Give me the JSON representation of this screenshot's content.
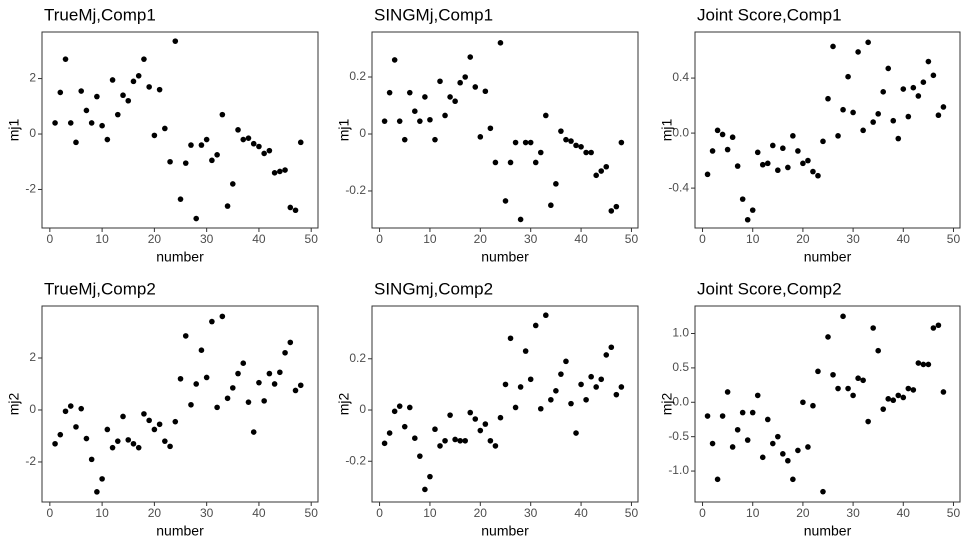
{
  "chart_data": [
    {
      "type": "scatter",
      "title": "TrueMj,Comp1",
      "x_label": "number",
      "y_label": "mj1",
      "color": "#000000",
      "grid": false,
      "x": [
        1,
        2,
        3,
        4,
        5,
        6,
        7,
        8,
        9,
        10,
        11,
        12,
        13,
        14,
        15,
        16,
        17,
        18,
        19,
        20,
        21,
        22,
        23,
        24,
        25,
        26,
        27,
        28,
        29,
        30,
        31,
        32,
        33,
        34,
        35,
        36,
        37,
        38,
        39,
        40,
        41,
        42,
        43,
        44,
        45,
        46,
        47,
        48
      ],
      "values": [
        0.4,
        1.5,
        2.7,
        0.4,
        -0.3,
        1.55,
        0.85,
        0.4,
        1.35,
        0.3,
        -0.2,
        1.95,
        0.7,
        1.4,
        1.2,
        1.9,
        2.1,
        2.7,
        1.7,
        -0.05,
        1.6,
        0.2,
        -1.0,
        3.35,
        -2.35,
        -1.05,
        -0.4,
        -3.05,
        -0.4,
        -0.2,
        -0.95,
        -0.75,
        0.7,
        -2.6,
        -1.8,
        0.15,
        -0.2,
        -0.15,
        -0.35,
        -0.45,
        -0.7,
        -0.6,
        -1.4,
        -1.35,
        -1.3,
        -2.65,
        -2.75,
        -0.3
      ],
      "xlim": [
        -1.5,
        51.3
      ],
      "xticks": [
        0,
        10,
        20,
        30,
        40,
        50
      ],
      "ylim": [
        -3.39,
        3.68
      ],
      "yticks": [
        -2,
        0,
        2
      ]
    },
    {
      "type": "scatter",
      "title": "SINGMj,Comp1",
      "x_label": "number",
      "y_label": "mj1",
      "color": "#000000",
      "grid": false,
      "x": [
        1,
        2,
        3,
        4,
        5,
        6,
        7,
        8,
        9,
        10,
        11,
        12,
        13,
        14,
        15,
        16,
        17,
        18,
        19,
        20,
        21,
        22,
        23,
        24,
        25,
        26,
        27,
        28,
        29,
        30,
        31,
        32,
        33,
        34,
        35,
        36,
        37,
        38,
        39,
        40,
        41,
        42,
        43,
        44,
        45,
        46,
        47,
        48
      ],
      "values": [
        0.045,
        0.145,
        0.26,
        0.045,
        -0.02,
        0.145,
        0.08,
        0.045,
        0.13,
        0.05,
        -0.02,
        0.185,
        0.065,
        0.13,
        0.115,
        0.18,
        0.2,
        0.27,
        0.165,
        -0.01,
        0.15,
        0.02,
        -0.1,
        0.32,
        -0.235,
        -0.1,
        -0.03,
        -0.3,
        -0.03,
        -0.03,
        -0.1,
        -0.065,
        0.065,
        -0.25,
        -0.175,
        0.01,
        -0.02,
        -0.025,
        -0.04,
        -0.045,
        -0.065,
        -0.065,
        -0.145,
        -0.13,
        -0.115,
        -0.27,
        -0.255,
        -0.03
      ],
      "xlim": [
        -1.5,
        51.3
      ],
      "xticks": [
        0,
        10,
        20,
        30,
        40,
        50
      ],
      "ylim": [
        -0.33,
        0.358
      ],
      "yticks": [
        -0.2,
        0,
        0.2
      ]
    },
    {
      "type": "scatter",
      "title": "Joint Score,Comp1",
      "x_label": "number",
      "y_label": "mj1",
      "color": "#000000",
      "grid": false,
      "x": [
        1,
        2,
        3,
        4,
        5,
        6,
        7,
        8,
        9,
        10,
        11,
        12,
        13,
        14,
        15,
        16,
        17,
        18,
        19,
        20,
        21,
        22,
        23,
        24,
        25,
        26,
        27,
        28,
        29,
        30,
        31,
        32,
        33,
        34,
        35,
        36,
        37,
        38,
        39,
        40,
        41,
        42,
        43,
        44,
        45,
        46,
        47,
        48
      ],
      "values": [
        -0.3,
        -0.13,
        0.02,
        -0.01,
        -0.12,
        -0.03,
        -0.24,
        -0.48,
        -0.63,
        -0.56,
        -0.14,
        -0.23,
        -0.22,
        -0.09,
        -0.27,
        -0.11,
        -0.25,
        -0.02,
        -0.13,
        -0.22,
        -0.2,
        -0.28,
        -0.31,
        -0.06,
        0.25,
        0.63,
        -0.02,
        0.17,
        0.41,
        0.15,
        0.59,
        0.02,
        0.66,
        0.08,
        0.14,
        0.3,
        0.47,
        0.09,
        -0.04,
        0.32,
        0.12,
        0.33,
        0.27,
        0.37,
        0.52,
        0.42,
        0.13,
        0.19
      ],
      "xlim": [
        -1.5,
        51.3
      ],
      "xticks": [
        0,
        10,
        20,
        30,
        40,
        50
      ],
      "ylim": [
        -0.69,
        0.735
      ],
      "yticks": [
        {
          "value": -0.4,
          "label": "-0.4"
        },
        {
          "value": 0,
          "label": "0.0"
        },
        {
          "value": 0.4,
          "label": "0.4"
        }
      ]
    },
    {
      "type": "scatter",
      "title": "TrueMj,Comp2",
      "x_label": "number",
      "y_label": "mj2",
      "color": "#000000",
      "grid": false,
      "x": [
        1,
        2,
        3,
        4,
        5,
        6,
        7,
        8,
        9,
        10,
        11,
        12,
        13,
        14,
        15,
        16,
        17,
        18,
        19,
        20,
        21,
        22,
        23,
        24,
        25,
        26,
        27,
        28,
        29,
        30,
        31,
        32,
        33,
        34,
        35,
        36,
        37,
        38,
        39,
        40,
        41,
        42,
        43,
        44,
        45,
        46,
        47,
        48
      ],
      "values": [
        -1.3,
        -0.95,
        -0.05,
        0.15,
        -0.65,
        0.05,
        -1.1,
        -1.9,
        -3.15,
        -2.65,
        -0.75,
        -1.45,
        -1.2,
        -0.25,
        -1.15,
        -1.3,
        -1.45,
        -0.15,
        -0.4,
        -0.75,
        -0.55,
        -1.2,
        -1.4,
        -0.45,
        1.2,
        2.85,
        0.2,
        1.0,
        2.3,
        1.25,
        3.4,
        0.1,
        3.6,
        0.45,
        0.85,
        1.4,
        1.8,
        0.3,
        -0.85,
        1.05,
        0.35,
        1.4,
        1.0,
        1.45,
        2.2,
        2.6,
        0.75,
        0.95
      ],
      "xlim": [
        -1.5,
        51.3
      ],
      "xticks": [
        0,
        10,
        20,
        30,
        40,
        50
      ],
      "ylim": [
        -3.54,
        4.0
      ],
      "yticks": [
        -2,
        0,
        2
      ]
    },
    {
      "type": "scatter",
      "title": "SINGmj,Comp2",
      "x_label": "number",
      "y_label": "mj2",
      "color": "#000000",
      "grid": false,
      "x": [
        1,
        2,
        3,
        4,
        5,
        6,
        7,
        8,
        9,
        10,
        11,
        12,
        13,
        14,
        15,
        16,
        17,
        18,
        19,
        20,
        21,
        22,
        23,
        24,
        25,
        26,
        27,
        28,
        29,
        30,
        31,
        32,
        33,
        34,
        35,
        36,
        37,
        38,
        39,
        40,
        41,
        42,
        43,
        44,
        45,
        46,
        47,
        48
      ],
      "values": [
        -0.13,
        -0.09,
        -0.005,
        0.015,
        -0.065,
        0.01,
        -0.11,
        -0.18,
        -0.31,
        -0.26,
        -0.075,
        -0.14,
        -0.12,
        -0.02,
        -0.115,
        -0.12,
        -0.12,
        -0.01,
        -0.035,
        -0.08,
        -0.055,
        -0.12,
        -0.14,
        -0.03,
        0.1,
        0.28,
        0.01,
        0.09,
        0.23,
        0.12,
        0.33,
        0.005,
        0.37,
        0.04,
        0.075,
        0.14,
        0.19,
        0.025,
        -0.09,
        0.1,
        0.04,
        0.13,
        0.09,
        0.12,
        0.215,
        0.245,
        0.06,
        0.09
      ],
      "xlim": [
        -1.5,
        51.3
      ],
      "xticks": [
        0,
        10,
        20,
        30,
        40,
        50
      ],
      "ylim": [
        -0.359,
        0.406
      ],
      "yticks": [
        -0.2,
        0,
        0.2
      ]
    },
    {
      "type": "scatter",
      "title": "Joint Score,Comp2",
      "x_label": "number",
      "y_label": "mj2",
      "color": "#000000",
      "grid": false,
      "x": [
        1,
        2,
        3,
        4,
        5,
        6,
        7,
        8,
        9,
        10,
        11,
        12,
        13,
        14,
        15,
        16,
        17,
        18,
        19,
        20,
        21,
        22,
        23,
        24,
        25,
        26,
        27,
        28,
        29,
        30,
        31,
        32,
        33,
        34,
        35,
        36,
        37,
        38,
        39,
        40,
        41,
        42,
        43,
        44,
        45,
        46,
        47,
        48
      ],
      "values": [
        -0.2,
        -0.6,
        -1.12,
        -0.2,
        0.15,
        -0.65,
        -0.4,
        -0.15,
        -0.55,
        -0.15,
        0.1,
        -0.8,
        -0.25,
        -0.6,
        -0.5,
        -0.75,
        -0.85,
        -1.12,
        -0.7,
        0.0,
        -0.65,
        -0.05,
        0.45,
        -1.3,
        0.95,
        0.4,
        0.2,
        1.25,
        0.2,
        0.1,
        0.35,
        0.32,
        -0.28,
        1.08,
        0.75,
        -0.1,
        0.05,
        0.03,
        0.1,
        0.07,
        0.2,
        0.18,
        0.57,
        0.55,
        0.55,
        1.08,
        1.12,
        0.15
      ],
      "xlim": [
        -1.5,
        51.3
      ],
      "xticks": [
        0,
        10,
        20,
        30,
        40,
        50
      ],
      "ylim": [
        -1.45,
        1.4
      ],
      "yticks": [
        {
          "value": -1,
          "label": "-1.0"
        },
        {
          "value": -0.5,
          "label": "-0.5"
        },
        {
          "value": 0,
          "label": "0.0"
        },
        {
          "value": 0.5,
          "label": "0.5"
        },
        {
          "value": 1,
          "label": "1.0"
        }
      ]
    }
  ]
}
